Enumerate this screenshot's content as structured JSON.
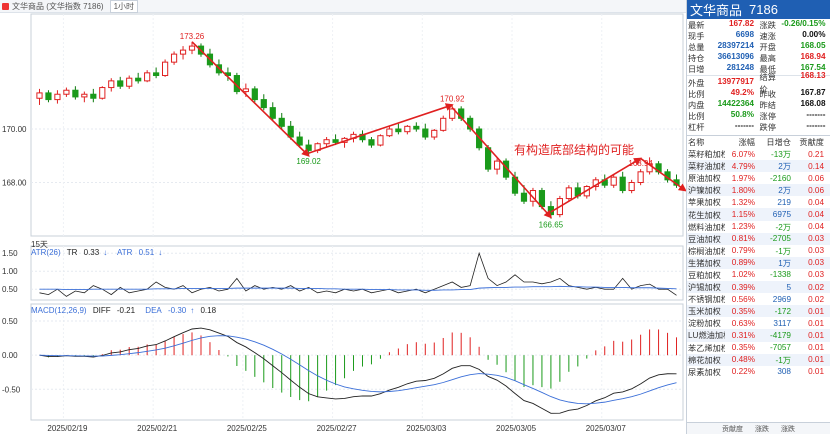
{
  "window": {
    "title": "文华商品 (文华指数 7186)",
    "period": "1小时",
    "period_count": "15天"
  },
  "chart_data": {
    "type": "candlestick",
    "x_ticks": [
      "2025/02/19",
      "2025/02/21",
      "2025/02/25",
      "2025/02/27",
      "2025/03/03",
      "2025/03/05",
      "2025/03/07"
    ],
    "y_ticks": [
      "170.00",
      "168.00"
    ],
    "ylim": [
      166.0,
      174.3
    ],
    "annotations": [
      "173.26",
      "169.02",
      "170.92",
      "166.65",
      "168.94"
    ],
    "note_text": "有构造底部结构的可能",
    "candles": [
      {
        "o": 171.15,
        "h": 171.5,
        "l": 170.9,
        "c": 171.35
      },
      {
        "o": 171.35,
        "h": 171.45,
        "l": 171.0,
        "c": 171.1
      },
      {
        "o": 171.1,
        "h": 171.45,
        "l": 170.95,
        "c": 171.3
      },
      {
        "o": 171.3,
        "h": 171.55,
        "l": 171.2,
        "c": 171.45
      },
      {
        "o": 171.45,
        "h": 171.6,
        "l": 171.1,
        "c": 171.2
      },
      {
        "o": 171.2,
        "h": 171.4,
        "l": 171.0,
        "c": 171.3
      },
      {
        "o": 171.3,
        "h": 171.5,
        "l": 171.0,
        "c": 171.15
      },
      {
        "o": 171.15,
        "h": 171.6,
        "l": 171.1,
        "c": 171.55
      },
      {
        "o": 171.55,
        "h": 171.9,
        "l": 171.4,
        "c": 171.8
      },
      {
        "o": 171.8,
        "h": 171.95,
        "l": 171.5,
        "c": 171.6
      },
      {
        "o": 171.6,
        "h": 172.0,
        "l": 171.5,
        "c": 171.9
      },
      {
        "o": 171.9,
        "h": 172.1,
        "l": 171.7,
        "c": 171.8
      },
      {
        "o": 171.8,
        "h": 172.2,
        "l": 171.75,
        "c": 172.1
      },
      {
        "o": 172.1,
        "h": 172.3,
        "l": 171.9,
        "c": 172.0
      },
      {
        "o": 172.0,
        "h": 172.6,
        "l": 171.95,
        "c": 172.5
      },
      {
        "o": 172.5,
        "h": 172.9,
        "l": 172.4,
        "c": 172.8
      },
      {
        "o": 172.8,
        "h": 173.1,
        "l": 172.6,
        "c": 172.95
      },
      {
        "o": 172.95,
        "h": 173.26,
        "l": 172.8,
        "c": 173.1
      },
      {
        "o": 173.1,
        "h": 173.2,
        "l": 172.7,
        "c": 172.8
      },
      {
        "o": 172.8,
        "h": 173.0,
        "l": 172.3,
        "c": 172.4
      },
      {
        "o": 172.4,
        "h": 172.6,
        "l": 172.0,
        "c": 172.1
      },
      {
        "o": 172.1,
        "h": 172.3,
        "l": 171.8,
        "c": 172.0
      },
      {
        "o": 172.0,
        "h": 172.1,
        "l": 171.3,
        "c": 171.4
      },
      {
        "o": 171.4,
        "h": 171.7,
        "l": 171.2,
        "c": 171.5
      },
      {
        "o": 171.5,
        "h": 171.6,
        "l": 171.0,
        "c": 171.1
      },
      {
        "o": 171.1,
        "h": 171.3,
        "l": 170.7,
        "c": 170.8
      },
      {
        "o": 170.8,
        "h": 171.0,
        "l": 170.3,
        "c": 170.4
      },
      {
        "o": 170.4,
        "h": 170.6,
        "l": 170.0,
        "c": 170.1
      },
      {
        "o": 170.1,
        "h": 170.3,
        "l": 169.6,
        "c": 169.7
      },
      {
        "o": 169.7,
        "h": 169.9,
        "l": 169.3,
        "c": 169.4
      },
      {
        "o": 169.4,
        "h": 169.6,
        "l": 169.02,
        "c": 169.2
      },
      {
        "o": 169.2,
        "h": 169.5,
        "l": 169.1,
        "c": 169.45
      },
      {
        "o": 169.45,
        "h": 169.7,
        "l": 169.3,
        "c": 169.6
      },
      {
        "o": 169.6,
        "h": 169.8,
        "l": 169.4,
        "c": 169.5
      },
      {
        "o": 169.5,
        "h": 169.7,
        "l": 169.3,
        "c": 169.65
      },
      {
        "o": 169.65,
        "h": 169.9,
        "l": 169.5,
        "c": 169.8
      },
      {
        "o": 169.8,
        "h": 169.95,
        "l": 169.5,
        "c": 169.6
      },
      {
        "o": 169.6,
        "h": 169.7,
        "l": 169.3,
        "c": 169.4
      },
      {
        "o": 169.4,
        "h": 169.8,
        "l": 169.35,
        "c": 169.75
      },
      {
        "o": 169.75,
        "h": 170.1,
        "l": 169.7,
        "c": 170.0
      },
      {
        "o": 170.0,
        "h": 170.2,
        "l": 169.8,
        "c": 169.9
      },
      {
        "o": 169.9,
        "h": 170.15,
        "l": 169.8,
        "c": 170.1
      },
      {
        "o": 170.1,
        "h": 170.25,
        "l": 169.9,
        "c": 170.0
      },
      {
        "o": 170.0,
        "h": 170.2,
        "l": 169.6,
        "c": 169.7
      },
      {
        "o": 169.7,
        "h": 170.0,
        "l": 169.6,
        "c": 169.95
      },
      {
        "o": 169.95,
        "h": 170.5,
        "l": 169.9,
        "c": 170.4
      },
      {
        "o": 170.4,
        "h": 170.92,
        "l": 170.3,
        "c": 170.75
      },
      {
        "o": 170.75,
        "h": 170.85,
        "l": 170.3,
        "c": 170.4
      },
      {
        "o": 170.4,
        "h": 170.5,
        "l": 169.9,
        "c": 170.0
      },
      {
        "o": 170.0,
        "h": 170.1,
        "l": 169.2,
        "c": 169.3
      },
      {
        "o": 169.3,
        "h": 169.4,
        "l": 168.4,
        "c": 168.5
      },
      {
        "o": 168.5,
        "h": 168.9,
        "l": 168.3,
        "c": 168.8
      },
      {
        "o": 168.8,
        "h": 168.9,
        "l": 168.1,
        "c": 168.2
      },
      {
        "o": 168.2,
        "h": 168.4,
        "l": 167.5,
        "c": 167.6
      },
      {
        "o": 167.6,
        "h": 167.9,
        "l": 167.2,
        "c": 167.3
      },
      {
        "o": 167.3,
        "h": 167.8,
        "l": 167.1,
        "c": 167.7
      },
      {
        "o": 167.7,
        "h": 167.8,
        "l": 167.0,
        "c": 167.1
      },
      {
        "o": 167.1,
        "h": 167.3,
        "l": 166.65,
        "c": 166.8
      },
      {
        "o": 166.8,
        "h": 167.5,
        "l": 166.7,
        "c": 167.4
      },
      {
        "o": 167.4,
        "h": 167.9,
        "l": 167.3,
        "c": 167.8
      },
      {
        "o": 167.8,
        "h": 168.0,
        "l": 167.4,
        "c": 167.5
      },
      {
        "o": 167.5,
        "h": 167.9,
        "l": 167.4,
        "c": 167.85
      },
      {
        "o": 167.85,
        "h": 168.2,
        "l": 167.7,
        "c": 168.1
      },
      {
        "o": 168.1,
        "h": 168.3,
        "l": 167.8,
        "c": 167.9
      },
      {
        "o": 167.9,
        "h": 168.3,
        "l": 167.8,
        "c": 168.2
      },
      {
        "o": 168.2,
        "h": 168.4,
        "l": 167.6,
        "c": 167.7
      },
      {
        "o": 167.7,
        "h": 168.1,
        "l": 167.6,
        "c": 168.0
      },
      {
        "o": 168.0,
        "h": 168.5,
        "l": 167.9,
        "c": 168.4
      },
      {
        "o": 168.4,
        "h": 168.94,
        "l": 168.3,
        "c": 168.7
      },
      {
        "o": 168.7,
        "h": 168.8,
        "l": 168.3,
        "c": 168.4
      },
      {
        "o": 168.4,
        "h": 168.5,
        "l": 168.0,
        "c": 168.1
      },
      {
        "o": 168.1,
        "h": 168.3,
        "l": 167.8,
        "c": 167.9
      }
    ],
    "trend_lines": [
      {
        "from": [
          17,
          173.26
        ],
        "to": [
          30,
          169.0
        ]
      },
      {
        "from": [
          30,
          169.1
        ],
        "to": [
          46,
          170.9
        ]
      },
      {
        "from": [
          46,
          170.8
        ],
        "to": [
          57,
          166.7
        ]
      },
      {
        "from": [
          57,
          166.9
        ],
        "to": [
          67,
          168.9
        ]
      },
      {
        "from": [
          67,
          168.9
        ],
        "to": [
          72,
          167.7
        ]
      }
    ],
    "atr": {
      "legend": "ATR(26)",
      "tr_label": "TR",
      "tr_value": "0.33",
      "atr_label": "ATR",
      "atr_value": "0.51",
      "y_ticks": [
        "1.50",
        "1.00",
        "0.50"
      ],
      "ylim": [
        0.2,
        1.7
      ],
      "tr": [
        0.4,
        0.35,
        0.5,
        0.3,
        0.45,
        0.4,
        0.6,
        0.5,
        0.35,
        0.55,
        0.4,
        0.45,
        0.5,
        0.7,
        0.55,
        0.5,
        0.6,
        0.4,
        0.5,
        0.55,
        0.45,
        0.5,
        0.8,
        0.45,
        0.6,
        0.5,
        0.55,
        0.5,
        0.6,
        0.45,
        0.55,
        0.4,
        0.45,
        0.4,
        0.5,
        0.45,
        0.5,
        0.4,
        0.45,
        0.5,
        0.4,
        0.45,
        0.5,
        0.4,
        0.5,
        0.6,
        0.7,
        0.55,
        0.6,
        1.5,
        0.8,
        0.6,
        0.7,
        0.9,
        0.7,
        0.7,
        0.65,
        0.7,
        0.8,
        0.6,
        0.55,
        0.5,
        0.55,
        0.5,
        0.5,
        0.8,
        0.5,
        0.6,
        0.64,
        0.5,
        0.5,
        0.33
      ],
      "atr": [
        0.5,
        0.5,
        0.5,
        0.49,
        0.49,
        0.49,
        0.5,
        0.5,
        0.5,
        0.5,
        0.5,
        0.5,
        0.5,
        0.51,
        0.51,
        0.51,
        0.52,
        0.52,
        0.52,
        0.52,
        0.52,
        0.52,
        0.53,
        0.53,
        0.53,
        0.53,
        0.53,
        0.53,
        0.53,
        0.52,
        0.52,
        0.52,
        0.51,
        0.51,
        0.5,
        0.5,
        0.5,
        0.49,
        0.49,
        0.49,
        0.48,
        0.48,
        0.48,
        0.47,
        0.47,
        0.48,
        0.48,
        0.49,
        0.49,
        0.53,
        0.54,
        0.55,
        0.55,
        0.56,
        0.56,
        0.57,
        0.57,
        0.57,
        0.58,
        0.57,
        0.57,
        0.56,
        0.56,
        0.55,
        0.55,
        0.55,
        0.54,
        0.54,
        0.54,
        0.53,
        0.52,
        0.51
      ]
    },
    "macd": {
      "legend": "MACD(12,26,9)",
      "diff_label": "DIFF",
      "diff_value": "-0.21",
      "dea_label": "DEA",
      "dea_value": "-0.30",
      "macd_value": "0.18",
      "y_ticks": [
        "0.50",
        "0.00",
        "-0.50"
      ],
      "ylim": [
        -0.95,
        0.75
      ]
    }
  },
  "quote": {
    "name": "文华商品",
    "code": "7186",
    "rows": [
      [
        {
          "label": "最新",
          "value": "167.82",
          "cls": "red"
        },
        {
          "label": "涨跌",
          "value": "-0.26/0.15%",
          "cls": "green"
        }
      ],
      [
        {
          "label": "现手",
          "value": "6698",
          "cls": "blue"
        },
        {
          "label": "速涨",
          "value": "0.00%",
          "cls": "dark"
        }
      ],
      [
        {
          "label": "总量",
          "value": "28397214",
          "cls": "blue"
        },
        {
          "label": "开盘",
          "value": "168.05",
          "cls": "green"
        }
      ],
      [
        {
          "label": "持仓",
          "value": "36613096",
          "cls": "blue"
        },
        {
          "label": "最高",
          "value": "168.94",
          "cls": "red"
        }
      ],
      [
        {
          "label": "日增",
          "value": "281248",
          "cls": "blue"
        },
        {
          "label": "最低",
          "value": "167.54",
          "cls": "green"
        }
      ],
      [
        {
          "label": "外盘",
          "value": "13977917",
          "cls": "red"
        },
        {
          "label": "结算价",
          "value": "168.13",
          "cls": "red"
        }
      ],
      [
        {
          "label": "比例",
          "value": "49.2%",
          "cls": "red"
        },
        {
          "label": "昨收",
          "value": "167.87",
          "cls": "dark"
        }
      ],
      [
        {
          "label": "内盘",
          "value": "14422364",
          "cls": "green"
        },
        {
          "label": "昨结",
          "value": "168.08",
          "cls": "dark"
        }
      ],
      [
        {
          "label": "比例",
          "value": "50.8%",
          "cls": "green"
        },
        {
          "label": "涨停",
          "value": "-------",
          "cls": "dark"
        }
      ],
      [
        {
          "label": "杠杆",
          "value": "-------",
          "cls": "dark"
        },
        {
          "label": "跌停",
          "value": "-------",
          "cls": "dark"
        }
      ]
    ]
  },
  "components": {
    "headers": {
      "name": "名称",
      "chg": "涨幅",
      "day": "日增仓",
      "contrib": "贡献度"
    },
    "rows": [
      {
        "name": "菜籽粕加权",
        "chg": "6.07%",
        "chg_cls": "red",
        "day": "-13万",
        "day_cls": "green",
        "contrib": "0.21",
        "contrib_cls": "red"
      },
      {
        "name": "菜籽油加权",
        "chg": "4.79%",
        "chg_cls": "red",
        "day": "2万",
        "day_cls": "blue",
        "contrib": "0.14",
        "contrib_cls": "red"
      },
      {
        "name": "原油加权",
        "chg": "1.97%",
        "chg_cls": "red",
        "day": "-2160",
        "day_cls": "green",
        "contrib": "0.06",
        "contrib_cls": "red"
      },
      {
        "name": "沪镍加权",
        "chg": "1.80%",
        "chg_cls": "red",
        "day": "2万",
        "day_cls": "blue",
        "contrib": "0.06",
        "contrib_cls": "red"
      },
      {
        "name": "苹果加权",
        "chg": "1.32%",
        "chg_cls": "red",
        "day": "219",
        "day_cls": "blue",
        "contrib": "0.04",
        "contrib_cls": "red"
      },
      {
        "name": "花生加权",
        "chg": "1.15%",
        "chg_cls": "red",
        "day": "6975",
        "day_cls": "blue",
        "contrib": "0.04",
        "contrib_cls": "red"
      },
      {
        "name": "燃料油加权",
        "chg": "1.23%",
        "chg_cls": "red",
        "day": "-2万",
        "day_cls": "green",
        "contrib": "0.04",
        "contrib_cls": "red"
      },
      {
        "name": "豆油加权",
        "chg": "0.81%",
        "chg_cls": "red",
        "day": "-2705",
        "day_cls": "green",
        "contrib": "0.03",
        "contrib_cls": "red"
      },
      {
        "name": "棕榈油加权",
        "chg": "0.79%",
        "chg_cls": "red",
        "day": "-1万",
        "day_cls": "green",
        "contrib": "0.03",
        "contrib_cls": "red"
      },
      {
        "name": "生猪加权",
        "chg": "0.89%",
        "chg_cls": "red",
        "day": "1万",
        "day_cls": "blue",
        "contrib": "0.03",
        "contrib_cls": "red"
      },
      {
        "name": "豆粕加权",
        "chg": "1.02%",
        "chg_cls": "red",
        "day": "-1338",
        "day_cls": "green",
        "contrib": "0.03",
        "contrib_cls": "red"
      },
      {
        "name": "沪锡加权",
        "chg": "0.39%",
        "chg_cls": "red",
        "day": "5",
        "day_cls": "blue",
        "contrib": "0.02",
        "contrib_cls": "red"
      },
      {
        "name": "不锈钢加权",
        "chg": "0.56%",
        "chg_cls": "red",
        "day": "2969",
        "day_cls": "blue",
        "contrib": "0.02",
        "contrib_cls": "red"
      },
      {
        "name": "玉米加权",
        "chg": "0.35%",
        "chg_cls": "red",
        "day": "-172",
        "day_cls": "green",
        "contrib": "0.01",
        "contrib_cls": "red"
      },
      {
        "name": "淀粉加权",
        "chg": "0.63%",
        "chg_cls": "red",
        "day": "3117",
        "day_cls": "blue",
        "contrib": "0.01",
        "contrib_cls": "red"
      },
      {
        "name": "LU燃油加权",
        "chg": "0.31%",
        "chg_cls": "red",
        "day": "-4179",
        "day_cls": "green",
        "contrib": "0.01",
        "contrib_cls": "red"
      },
      {
        "name": "苯乙烯加权",
        "chg": "0.35%",
        "chg_cls": "red",
        "day": "-7057",
        "day_cls": "green",
        "contrib": "0.01",
        "contrib_cls": "red"
      },
      {
        "name": "棉花加权",
        "chg": "0.48%",
        "chg_cls": "red",
        "day": "-1万",
        "day_cls": "green",
        "contrib": "0.01",
        "contrib_cls": "red"
      },
      {
        "name": "尿素加权",
        "chg": "0.22%",
        "chg_cls": "red",
        "day": "308",
        "day_cls": "blue",
        "contrib": "0.01",
        "contrib_cls": "red"
      }
    ]
  },
  "footer": {
    "tabs": [
      "贡献度",
      "涨跌",
      "涨跌"
    ]
  }
}
